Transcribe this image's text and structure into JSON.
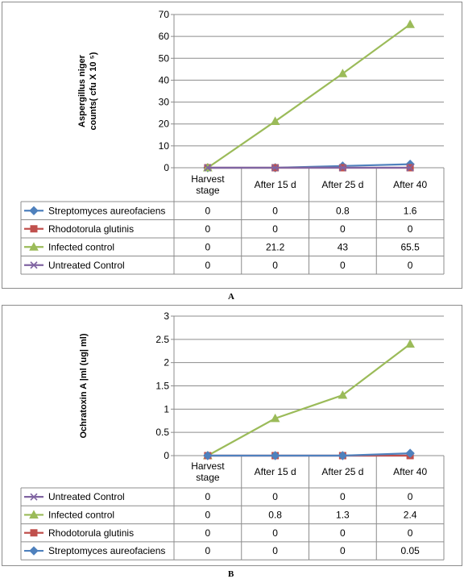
{
  "chart_data": [
    {
      "type": "line",
      "panel_label": "A",
      "ylabel_lines": [
        "Aspergillus niger",
        "counts( cfu X 10 ⁵)"
      ],
      "categories": [
        [
          "Harvest",
          "stage"
        ],
        [
          "After 15 d"
        ],
        [
          "After 25 d"
        ],
        [
          "After 40"
        ]
      ],
      "ylim": [
        0,
        70
      ],
      "yticks": [
        "0",
        "10",
        "20",
        "30",
        "40",
        "50",
        "60",
        "70"
      ],
      "grid": true,
      "series": [
        {
          "name": "Streptomyces aureofaciens",
          "values": [
            0,
            0,
            0.8,
            1.6
          ],
          "labels": [
            "0",
            "0",
            "0.8",
            "1.6"
          ],
          "color": "#4f81bd",
          "marker": "diamond"
        },
        {
          "name": "Rhodotorula glutinis",
          "values": [
            0,
            0,
            0,
            0
          ],
          "labels": [
            "0",
            "0",
            "0",
            "0"
          ],
          "color": "#c0504d",
          "marker": "square"
        },
        {
          "name": "Infected control",
          "values": [
            0,
            21.2,
            43,
            65.5
          ],
          "labels": [
            "0",
            "21.2",
            "43",
            "65.5"
          ],
          "color": "#9bbb59",
          "marker": "triangle"
        },
        {
          "name": "Untreated Control",
          "values": [
            0,
            0,
            0,
            0
          ],
          "labels": [
            "0",
            "0",
            "0",
            "0"
          ],
          "color": "#8064a2",
          "marker": "x"
        }
      ]
    },
    {
      "type": "line",
      "panel_label": "B",
      "ylabel_lines": [
        "Ochratoxin A |ml (ug| ml)"
      ],
      "categories": [
        [
          "Harvest",
          "stage"
        ],
        [
          "After 15 d"
        ],
        [
          "After 25 d"
        ],
        [
          "After 40"
        ]
      ],
      "ylim": [
        0,
        3
      ],
      "yticks": [
        "0",
        "0.5",
        "1",
        "1.5",
        "2",
        "2.5",
        "3"
      ],
      "grid": true,
      "series": [
        {
          "name": "Untreated Control",
          "values": [
            0,
            0,
            0,
            0
          ],
          "labels": [
            "0",
            "0",
            "0",
            "0"
          ],
          "color": "#8064a2",
          "marker": "x"
        },
        {
          "name": "Infected control",
          "values": [
            0,
            0.8,
            1.3,
            2.4
          ],
          "labels": [
            "0",
            "0.8",
            "1.3",
            "2.4"
          ],
          "color": "#9bbb59",
          "marker": "triangle"
        },
        {
          "name": "Rhodotorula glutinis",
          "values": [
            0,
            0,
            0,
            0
          ],
          "labels": [
            "0",
            "0",
            "0",
            "0"
          ],
          "color": "#c0504d",
          "marker": "square"
        },
        {
          "name": "Streptomyces aureofaciens",
          "values": [
            0,
            0,
            0,
            0.05
          ],
          "labels": [
            "0",
            "0",
            "0",
            "0.05"
          ],
          "color": "#4f81bd",
          "marker": "diamond"
        }
      ]
    }
  ]
}
